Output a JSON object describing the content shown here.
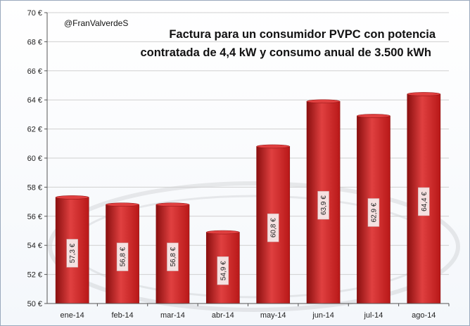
{
  "header": {
    "handle": "@FranValverdeS",
    "title_lines": [
      "Factura para un consumidor PVPC con potencia",
      "contratada de 4,4 kW y consumo anual de 3.500 kWh"
    ]
  },
  "colors": {
    "bar_top": "#e04040",
    "bar_bottom": "#b81818",
    "bar_dark": "#8a0f0f",
    "label_box": "#f5e1e1"
  },
  "chart_data": {
    "type": "bar",
    "title": "Factura para un consumidor PVPC con potencia contratada de 4,4 kW y consumo anual de 3.500 kWh",
    "categories": [
      "ene-14",
      "feb-14",
      "mar-14",
      "abr-14",
      "may-14",
      "jun-14",
      "jul-14",
      "ago-14"
    ],
    "values": [
      57.3,
      56.8,
      56.8,
      54.9,
      60.8,
      63.9,
      62.9,
      64.4
    ],
    "data_labels": [
      "57,3 €",
      "56,8 €",
      "56,8 €",
      "54,9 €",
      "60,8 €",
      "63,9 €",
      "62,9 €",
      "64,4 €"
    ],
    "ylim": [
      50,
      70
    ],
    "y_ticks": [
      50,
      52,
      54,
      56,
      58,
      60,
      62,
      64,
      66,
      68,
      70
    ],
    "y_tick_labels": [
      "50 €",
      "52 €",
      "54 €",
      "56 €",
      "58 €",
      "60 €",
      "62 €",
      "64 €",
      "66 €",
      "68 €",
      "70 €"
    ],
    "xlabel": "",
    "ylabel": "",
    "grid": true,
    "legend": "none"
  }
}
